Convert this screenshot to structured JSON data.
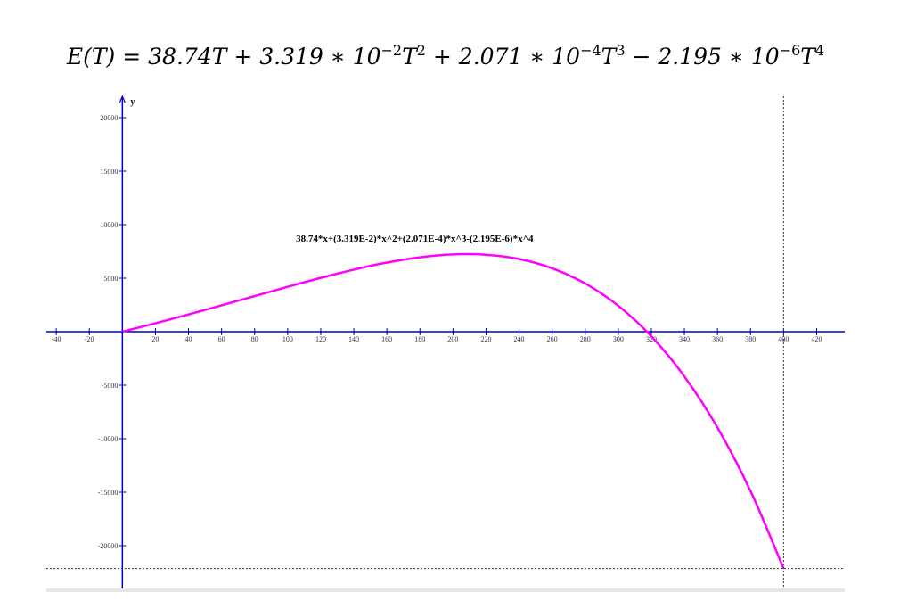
{
  "chart_data": {
    "type": "line",
    "title_parts": [
      "E(T) =  38.74T + 3.319 ∗ 10",
      "−2",
      "T",
      "2",
      " + 2.071 ∗ 10",
      "−4",
      "T",
      "3",
      " − 2.195 ∗ 10",
      "−6",
      "T",
      "4"
    ],
    "y_label": "y",
    "x": [
      0,
      20,
      40,
      60,
      80,
      100,
      120,
      140,
      160,
      180,
      200,
      220,
      240,
      260,
      280,
      300,
      320,
      340,
      360,
      380,
      400
    ],
    "series": [
      {
        "name": "38.74*x+(3.319E-2)*x^2+(2.071E-4)*x^3-(2.195E-6)*x^4",
        "color": "#ff00ff",
        "values": [
          0,
          789.4,
          1610.3,
          2460.2,
          3327.7,
          4193.5,
          5029.4,
          5799.2,
          6457.9,
          6952.2,
          7220.4,
          7192.2,
          6789.7,
          5925.4,
          4503.9,
          2421.3,
          -434.4,
          -4184.3,
          -8957.3,
          -14890.9,
          -22131.2
        ]
      }
    ],
    "xlim": [
      -46,
      437
    ],
    "ylim": [
      -24000,
      22000
    ],
    "xticks": [
      -40,
      -20,
      20,
      40,
      60,
      80,
      100,
      120,
      140,
      160,
      180,
      200,
      220,
      240,
      260,
      280,
      300,
      320,
      340,
      360,
      380,
      400,
      420
    ],
    "yticks": [
      -20000,
      -15000,
      -10000,
      -5000,
      5000,
      10000,
      15000,
      20000
    ],
    "axis_color": "#0000cc",
    "grid": false
  }
}
